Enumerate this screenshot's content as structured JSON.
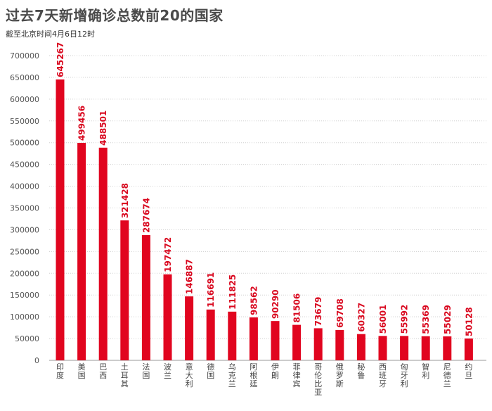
{
  "header": {
    "title": "过去7天新增确诊总数前20的国家",
    "subtitle": "截至北京时间4月6日12时"
  },
  "colors": {
    "bar": "#e1051f",
    "label": "#d9081f",
    "grid": "#d0d0d0",
    "axis_text": "#555555"
  },
  "chart_data": {
    "type": "bar",
    "title": "过去7天新增确诊总数前20的国家",
    "subtitle": "截至北京时间4月6日12时",
    "xlabel": "",
    "ylabel": "",
    "ylim": [
      0,
      700000
    ],
    "yticks": [
      "0",
      "50000",
      "100000",
      "150000",
      "200000",
      "250000",
      "300000",
      "350000",
      "400000",
      "450000",
      "500000",
      "550000",
      "600000",
      "650000",
      "700000"
    ],
    "grid": true,
    "categories": [
      "印度",
      "美国",
      "巴西",
      "土耳其",
      "法国",
      "波兰",
      "意大利",
      "德国",
      "乌克兰",
      "阿根廷",
      "伊朗",
      "菲律宾",
      "哥伦比亚",
      "俄罗斯",
      "秘鲁",
      "西班牙",
      "匈牙利",
      "智利",
      "尼德兰",
      "约旦"
    ],
    "values": [
      645267,
      499456,
      488501,
      321428,
      287674,
      197472,
      146887,
      116691,
      111825,
      98562,
      90290,
      81506,
      73679,
      69708,
      60327,
      56001,
      55992,
      55369,
      55029,
      50128
    ]
  }
}
